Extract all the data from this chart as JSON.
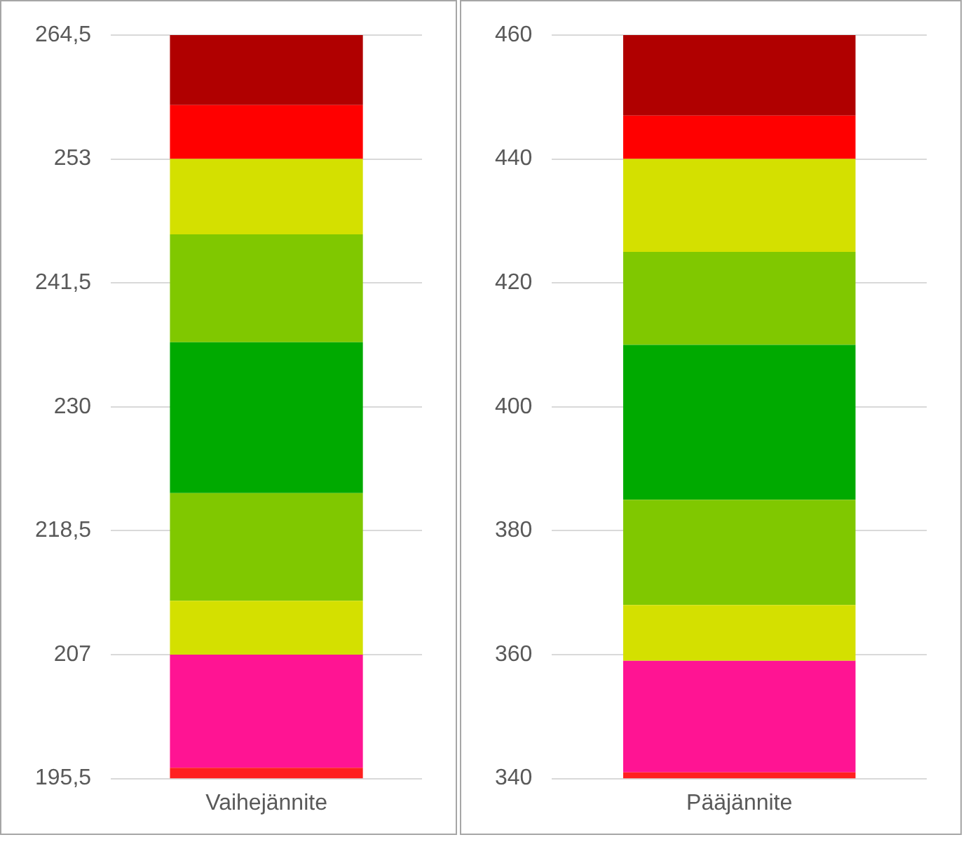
{
  "chart_data": [
    {
      "type": "bar",
      "categories": [
        "Vaihejännite"
      ],
      "ylim": [
        195.5,
        264.5
      ],
      "yticks": [
        {
          "value": 195.5,
          "label": "195,5"
        },
        207,
        {
          "value": 218.5,
          "label": "218,5"
        },
        230,
        {
          "value": 241.5,
          "label": "241,5"
        },
        253,
        {
          "value": 264.5,
          "label": "264,5"
        }
      ],
      "grid": "y",
      "series": [
        {
          "color": "#ff2020",
          "base": [
            195.5
          ],
          "values": [
            1
          ]
        },
        {
          "color": "#ff1493",
          "base": [
            196.5
          ],
          "values": [
            10.5
          ]
        },
        {
          "color": "#d4e000",
          "base": [
            207
          ],
          "values": [
            5
          ]
        },
        {
          "color": "#80c800",
          "base": [
            212
          ],
          "values": [
            10
          ]
        },
        {
          "color": "#00aa00",
          "base": [
            222
          ],
          "values": [
            14
          ]
        },
        {
          "color": "#80c800",
          "base": [
            236
          ],
          "values": [
            10
          ]
        },
        {
          "color": "#d4e000",
          "base": [
            246
          ],
          "values": [
            7
          ]
        },
        {
          "color": "#ff0000",
          "base": [
            253
          ],
          "values": [
            5
          ]
        },
        {
          "color": "#b00000",
          "base": [
            258
          ],
          "values": [
            6.5
          ]
        }
      ]
    },
    {
      "type": "bar",
      "categories": [
        "Pääjännite"
      ],
      "ylim": [
        340,
        460
      ],
      "yticks": [
        340,
        360,
        380,
        400,
        420,
        440,
        460
      ],
      "grid": "y",
      "series": [
        {
          "color": "#ff2020",
          "base": [
            340
          ],
          "values": [
            1
          ]
        },
        {
          "color": "#ff1493",
          "base": [
            341
          ],
          "values": [
            18
          ]
        },
        {
          "color": "#d4e000",
          "base": [
            359
          ],
          "values": [
            9
          ]
        },
        {
          "color": "#80c800",
          "base": [
            368
          ],
          "values": [
            17
          ]
        },
        {
          "color": "#00aa00",
          "base": [
            385
          ],
          "values": [
            25
          ]
        },
        {
          "color": "#80c800",
          "base": [
            410
          ],
          "values": [
            15
          ]
        },
        {
          "color": "#d4e000",
          "base": [
            425
          ],
          "values": [
            15
          ]
        },
        {
          "color": "#ff0000",
          "base": [
            440
          ],
          "values": [
            7
          ]
        },
        {
          "color": "#b00000",
          "base": [
            447
          ],
          "values": [
            13
          ]
        }
      ]
    }
  ]
}
